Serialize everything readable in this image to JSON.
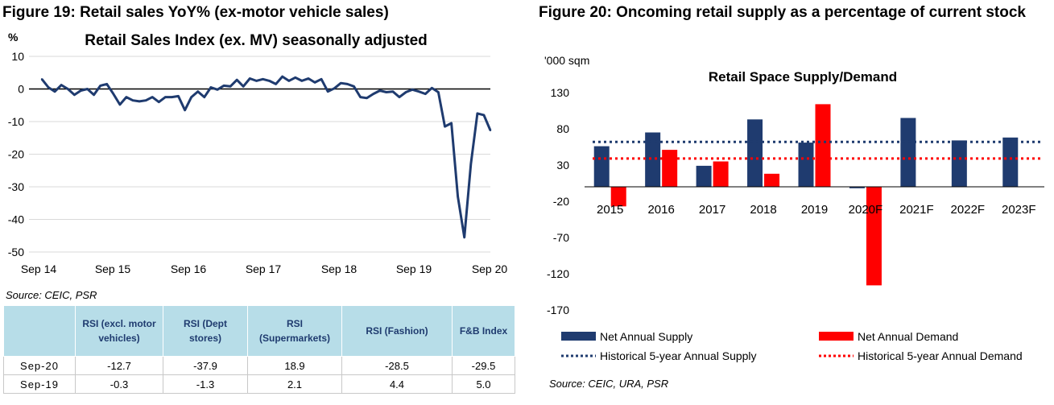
{
  "fig19": {
    "title": "Figure 19: Retail sales YoY% (ex-motor vehicle sales)",
    "source": "Source: CEIC, PSR"
  },
  "fig20": {
    "title": "Figure 20: Oncoming retail supply as a percentage of current stock",
    "source": "Source: CEIC, URA, PSR"
  },
  "table": {
    "headers": [
      "",
      "RSI (excl. motor vehicles)",
      "RSI (Dept stores)",
      "RSI (Supermarkets)",
      "RSI (Fashion)",
      "F&B Index"
    ],
    "rows": [
      {
        "label": "Sep-20",
        "values": [
          "-12.7",
          "-37.9",
          "18.9",
          "-28.5",
          "-29.5"
        ]
      },
      {
        "label": "Sep-19",
        "values": [
          "-0.3",
          "-1.3",
          "2.1",
          "4.4",
          "5.0"
        ]
      }
    ]
  },
  "chart_data": [
    {
      "type": "line",
      "title": "Retail Sales Index (ex. MV) seasonally adjusted",
      "ylabel": "%",
      "xlabel": "",
      "ylim": [
        -50,
        10
      ],
      "yticks": [
        10,
        0,
        -10,
        -20,
        -30,
        -40,
        -50
      ],
      "xticks": [
        "Sep 14",
        "Sep 15",
        "Sep 16",
        "Sep 17",
        "Sep 18",
        "Sep 19",
        "Sep 20"
      ],
      "grid": true,
      "color": "#1f3b6f",
      "x_start": "Sep 14",
      "x_end": "Sep 20",
      "values": [
        3,
        0.5,
        -0.8,
        1.2,
        0,
        -1.8,
        -0.5,
        0,
        -1.8,
        1,
        1.5,
        -1.5,
        -4.8,
        -2.5,
        -3.5,
        -3.8,
        -3.5,
        -2.5,
        -4,
        -2.5,
        -2.5,
        -2.2,
        -6.5,
        -2.5,
        -0.8,
        -2.5,
        0.5,
        -0.2,
        1,
        0.8,
        2.8,
        0.8,
        3.2,
        2.5,
        3,
        2.5,
        1.5,
        3.8,
        2.5,
        3.5,
        2.5,
        3.2,
        2,
        3,
        -0.8,
        0.2,
        1.8,
        1.5,
        0.8,
        -2.5,
        -2.8,
        -1.5,
        -0.5,
        -1,
        -0.8,
        -2.5,
        -1,
        -0.2,
        -0.8,
        -1.5,
        0.3,
        -1,
        -11.5,
        -10.5,
        -33,
        -45.5,
        -23,
        -7.5,
        -8,
        -12.7
      ]
    },
    {
      "type": "bar",
      "title": "Retail Space Supply/Demand",
      "ylabel": "'000 sqm",
      "xlabel": "",
      "ylim": [
        -170,
        130
      ],
      "yticks": [
        130,
        80,
        30,
        -20,
        -70,
        -120,
        -170
      ],
      "categories": [
        "2015",
        "2016",
        "2017",
        "2018",
        "2019",
        "2020F",
        "2021F",
        "2022F",
        "2023F"
      ],
      "series": [
        {
          "name": "Net Annual Supply",
          "color": "#1f3b6f",
          "values": [
            56,
            75,
            29,
            93,
            61,
            -2,
            95,
            64,
            68
          ]
        },
        {
          "name": "Net Annual Demand",
          "color": "#ff0000",
          "values": [
            -27,
            51,
            35,
            18,
            114,
            -136,
            null,
            null,
            null
          ]
        }
      ],
      "reference_lines": [
        {
          "name": "Historical 5-year Annual Supply",
          "color": "#1f3b6f",
          "value": 62
        },
        {
          "name": "Historical 5-year Annual Demand",
          "color": "#ff0000",
          "value": 39
        }
      ],
      "legend_position": "bottom"
    }
  ]
}
